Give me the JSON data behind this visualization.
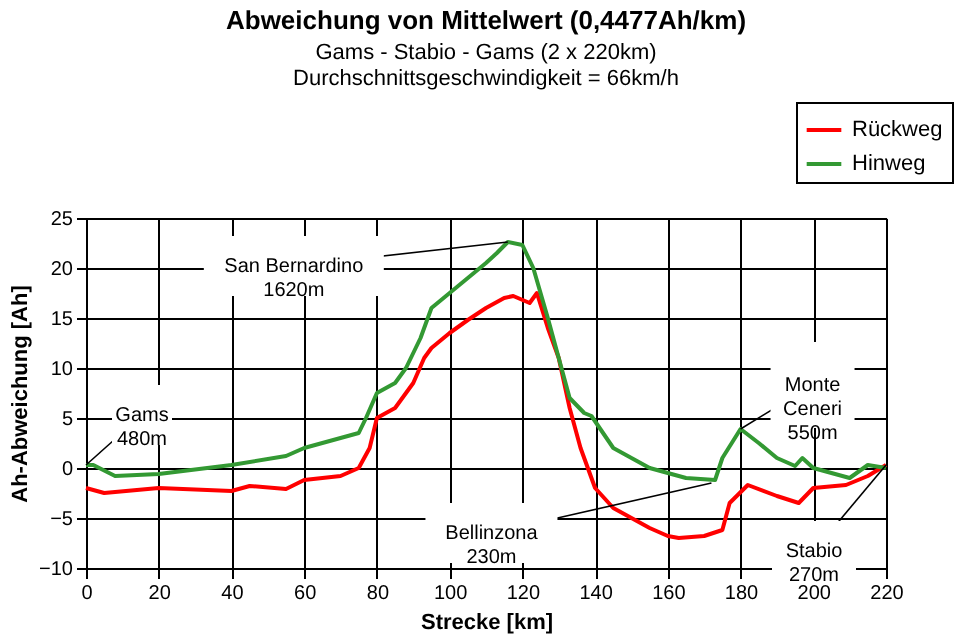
{
  "chart_data": {
    "type": "line",
    "title": "Abweichung von Mittelwert (0,4477Ah/km)",
    "subtitle": [
      "Gams - Stabio - Gams (2 x 220km)",
      "Durchschnittsgeschwindigkeit = 66km/h"
    ],
    "xlabel": "Strecke [km]",
    "ylabel": "Ah-Abweichung [Ah]",
    "series": [
      {
        "name": "Rückweg",
        "color": "#ff0000",
        "x": [
          0,
          5,
          20,
          40,
          45,
          55,
          60,
          70,
          75,
          78,
          80,
          85,
          90,
          93,
          95,
          100,
          105,
          110,
          115,
          117.5,
          122,
          124,
          127,
          130,
          133,
          136,
          140,
          145,
          150,
          155,
          160,
          163,
          170,
          175,
          177,
          182,
          190,
          196,
          200,
          209,
          215,
          220
        ],
        "values": [
          -2,
          -2.5,
          -2,
          -2.3,
          -1.8,
          -2.1,
          -1.2,
          -0.8,
          0,
          2,
          5,
          6,
          8.5,
          11,
          12,
          13.5,
          14.8,
          16,
          17,
          17.2,
          16.5,
          17.5,
          14,
          11,
          6,
          2,
          -2,
          -4,
          -5,
          -6,
          -6.8,
          -7,
          -6.8,
          -6.2,
          -3.5,
          -1.7,
          -2.8,
          -3.5,
          -2,
          -1.7,
          -0.8,
          0.3
        ]
      },
      {
        "name": "Hinweg",
        "color": "#339933",
        "x": [
          0,
          2,
          8,
          20,
          40,
          55,
          60,
          70,
          75,
          77,
          80,
          85,
          88,
          92,
          95,
          100,
          105,
          110,
          113,
          116,
          120,
          123,
          127,
          130,
          133,
          137,
          139,
          145,
          155,
          165,
          173,
          175,
          180,
          185,
          190,
          195,
          197,
          200,
          205,
          210,
          215,
          220
        ],
        "values": [
          0.3,
          0.3,
          -0.8,
          -0.6,
          0.3,
          1.2,
          2,
          3,
          3.5,
          5,
          7.5,
          8.5,
          10,
          13,
          16,
          17.5,
          19,
          20.5,
          21.5,
          22.6,
          22.3,
          20,
          15,
          11,
          7,
          5.5,
          5.2,
          2,
          0,
          -1,
          -1.2,
          1,
          3.9,
          2.5,
          1,
          0.2,
          1,
          0,
          -0.5,
          -1,
          0.3,
          0
        ]
      }
    ],
    "xlim": [
      0,
      220
    ],
    "xticks": [
      0,
      20,
      40,
      60,
      80,
      100,
      120,
      140,
      160,
      180,
      200,
      220
    ],
    "ylim": [
      -10,
      25
    ],
    "yticks": [
      -10,
      -5,
      0,
      5,
      10,
      15,
      20,
      25
    ],
    "grid": true,
    "legend": "top right",
    "annotations": [
      {
        "text": "Gams\n480m",
        "x": 0,
        "y": 0.3
      },
      {
        "text": "San Bernardino\n1620m",
        "x": 116,
        "y": 22.6
      },
      {
        "text": "Monte\nCeneri\n550m",
        "x": 180,
        "y": 3.9
      },
      {
        "text": "Bellinzona\n230m",
        "x": 172,
        "y": -1.5
      },
      {
        "text": "Stabio\n270m",
        "x": 220,
        "y": 0.3
      }
    ]
  }
}
